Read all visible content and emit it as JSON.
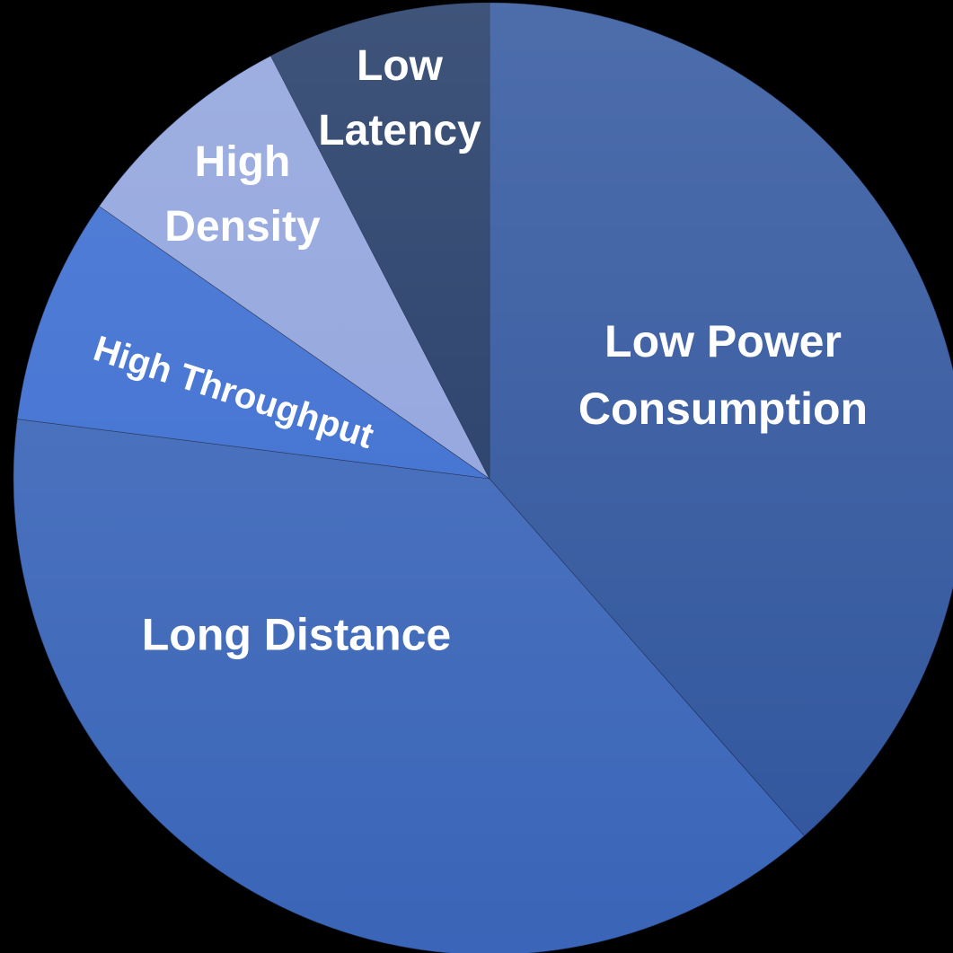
{
  "chart_data": {
    "type": "pie",
    "categories": [
      "Low Power Consumption",
      "Long Distance",
      "High Throughput",
      "High Density",
      "Low Latency"
    ],
    "values": [
      38.5,
      38.5,
      7.7,
      7.7,
      7.6
    ],
    "colors": [
      "#30559d",
      "#3a65b8",
      "#3a6cd0",
      "#8fa2dc",
      "#203864"
    ]
  }
}
